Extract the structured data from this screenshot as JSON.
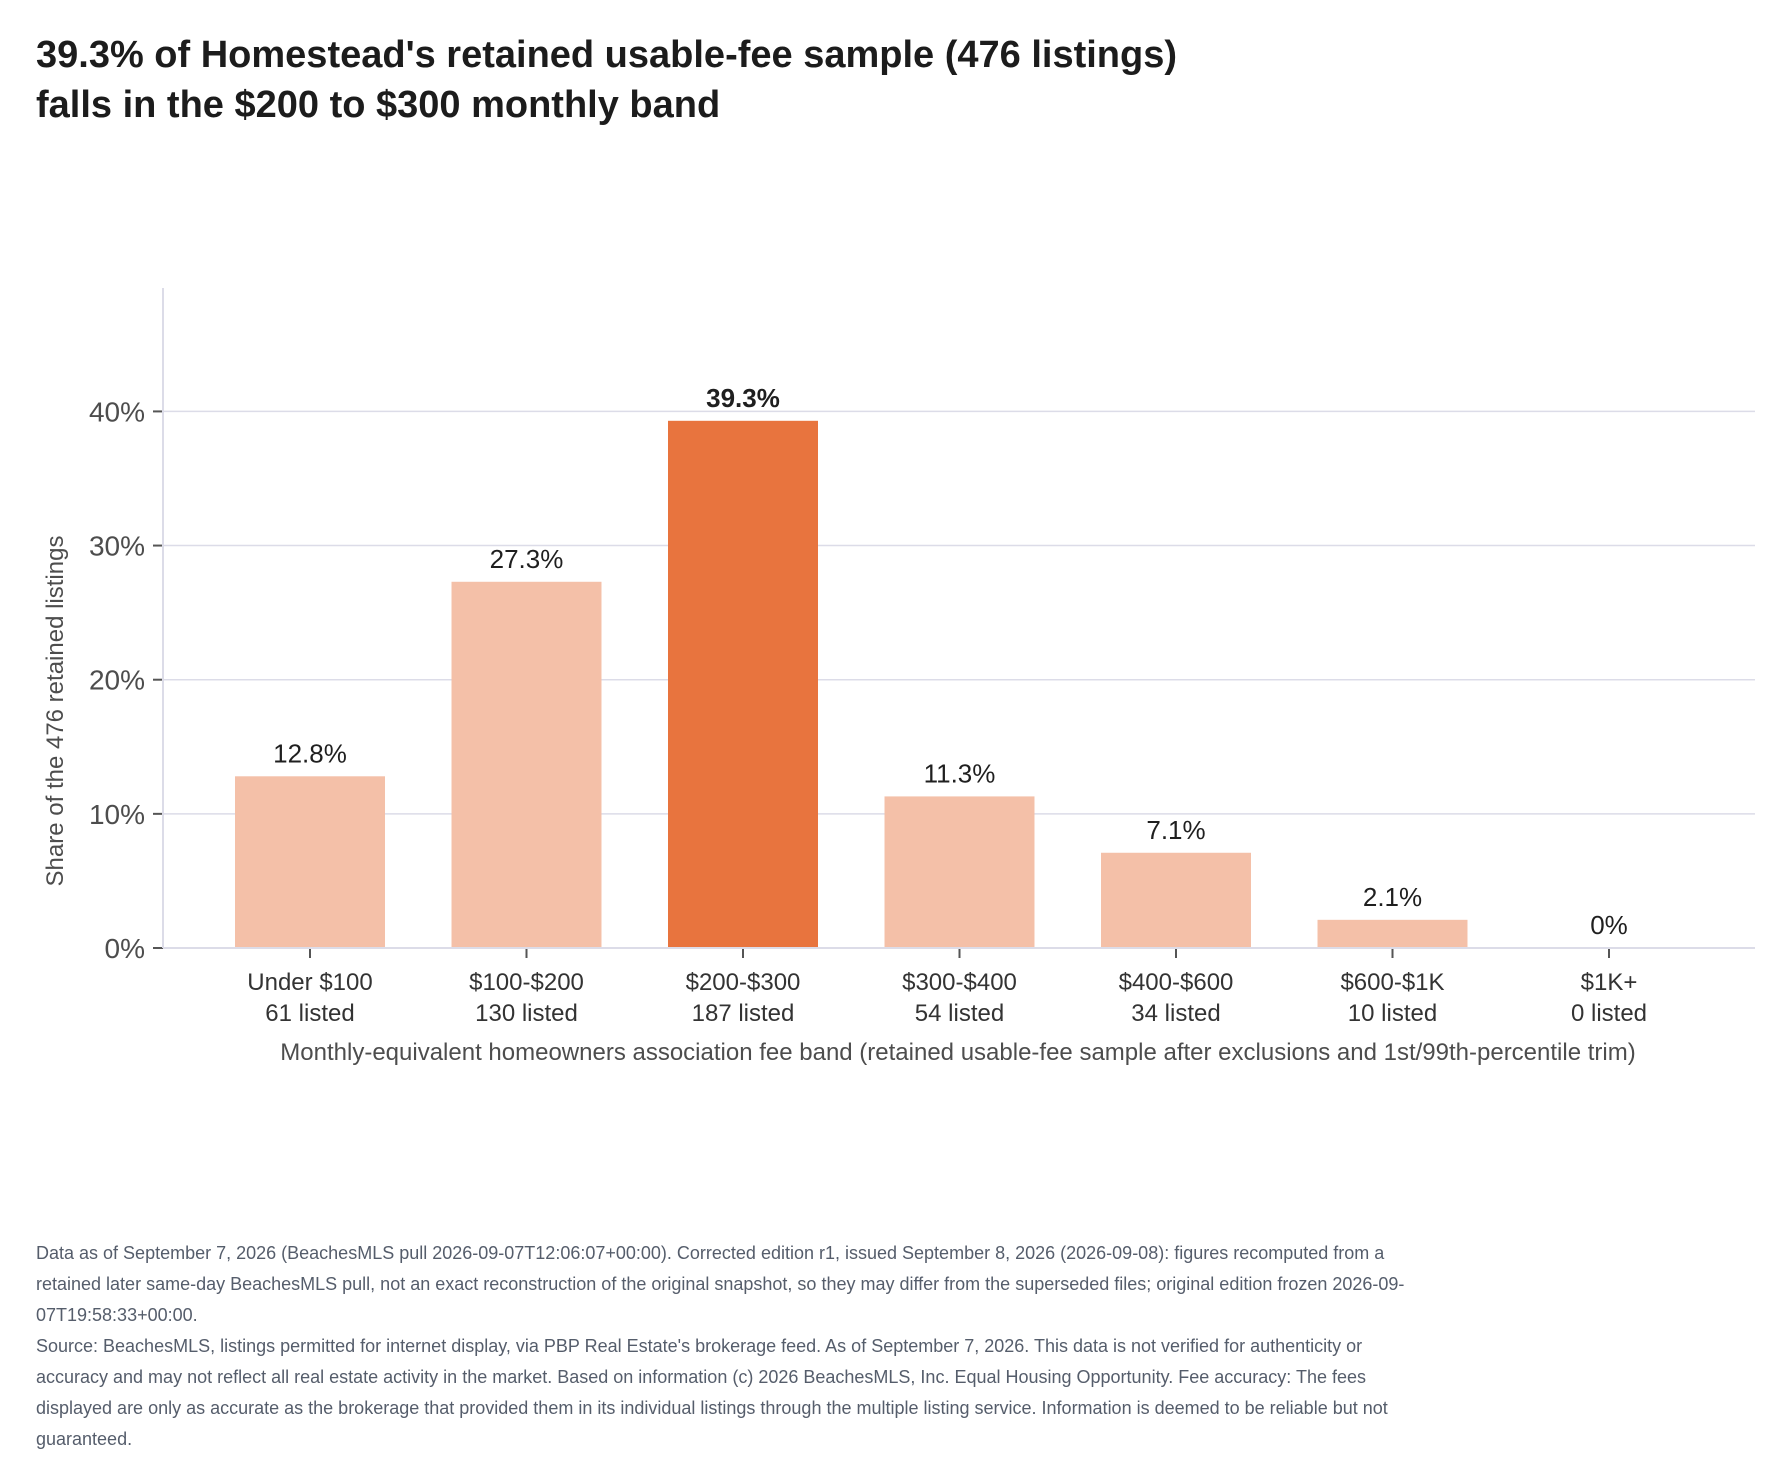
{
  "title": {
    "line1": "39.3% of Homestead's retained usable-fee sample (476 listings)",
    "line2": "falls in the $200 to $300 monthly band"
  },
  "chart_data": {
    "type": "bar",
    "categories": [
      "Under $100",
      "$100-$200",
      "$200-$300",
      "$300-$400",
      "$400-$600",
      "$600-$1K",
      "$1K+"
    ],
    "counts": [
      "61 listed",
      "130 listed",
      "187 listed",
      "54 listed",
      "34 listed",
      "10 listed",
      "0 listed"
    ],
    "values": [
      12.8,
      27.3,
      39.3,
      11.3,
      7.1,
      2.1,
      0
    ],
    "value_labels": [
      "12.8%",
      "27.3%",
      "39.3%",
      "11.3%",
      "7.1%",
      "2.1%",
      "0%"
    ],
    "highlight_index": 2,
    "ylabel": "Share of the 476 retained listings",
    "xlabel": "Monthly-equivalent homeowners association fee band (retained usable-fee sample after exclusions and 1st/99th-percentile trim)",
    "yticks": [
      0,
      10,
      20,
      30,
      40
    ],
    "ytick_labels": [
      "0%",
      "10%",
      "20%",
      "30%",
      "40%"
    ],
    "ylim": [
      0,
      49.2
    ],
    "grid": true,
    "colors": {
      "bar": "#f4c0a8",
      "highlight": "#e8743e",
      "grid": "#dcdce8",
      "axis": "#555555"
    }
  },
  "notes": {
    "data_note": "Data as of September 7, 2026 (BeachesMLS pull 2026-09-07T12:06:07+00:00). Corrected edition r1, issued September 8, 2026 (2026-09-08): figures recomputed from a retained later same-day BeachesMLS pull, not an exact reconstruction of the original snapshot, so they may differ from the superseded files; original edition frozen 2026-09-07T19:58:33+00:00.",
    "source": "Source: BeachesMLS, listings permitted for internet display, via PBP Real Estate's brokerage feed. As of September 7, 2026. This data is not verified for authenticity or accuracy and may not reflect all real estate activity in the market. Based on information (c) 2026 BeachesMLS, Inc. Equal Housing Opportunity. Fee accuracy: The fees displayed are only as accurate as the brokerage that provided them in its individual listings through the multiple listing service. Information is deemed to be reliable but not guaranteed."
  }
}
